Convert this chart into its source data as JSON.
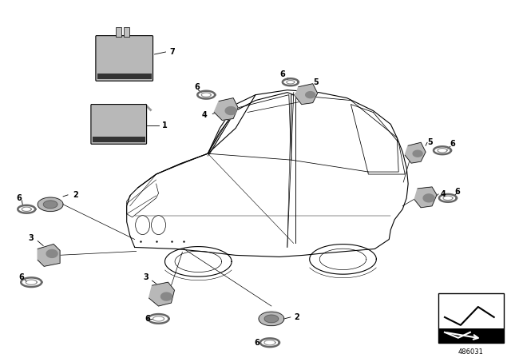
{
  "bg_color": "#ffffff",
  "fig_width": 6.4,
  "fig_height": 4.48,
  "dpi": 100,
  "diagram_id": "486031",
  "car_color": "#ffffff",
  "car_edge": "#000000",
  "part_gray": "#b8b8b8",
  "part_dark": "#888888",
  "ring_color": "#999999",
  "lw_car": 0.8,
  "lw_part": 0.6,
  "label_fs": 7,
  "id_fs": 6
}
